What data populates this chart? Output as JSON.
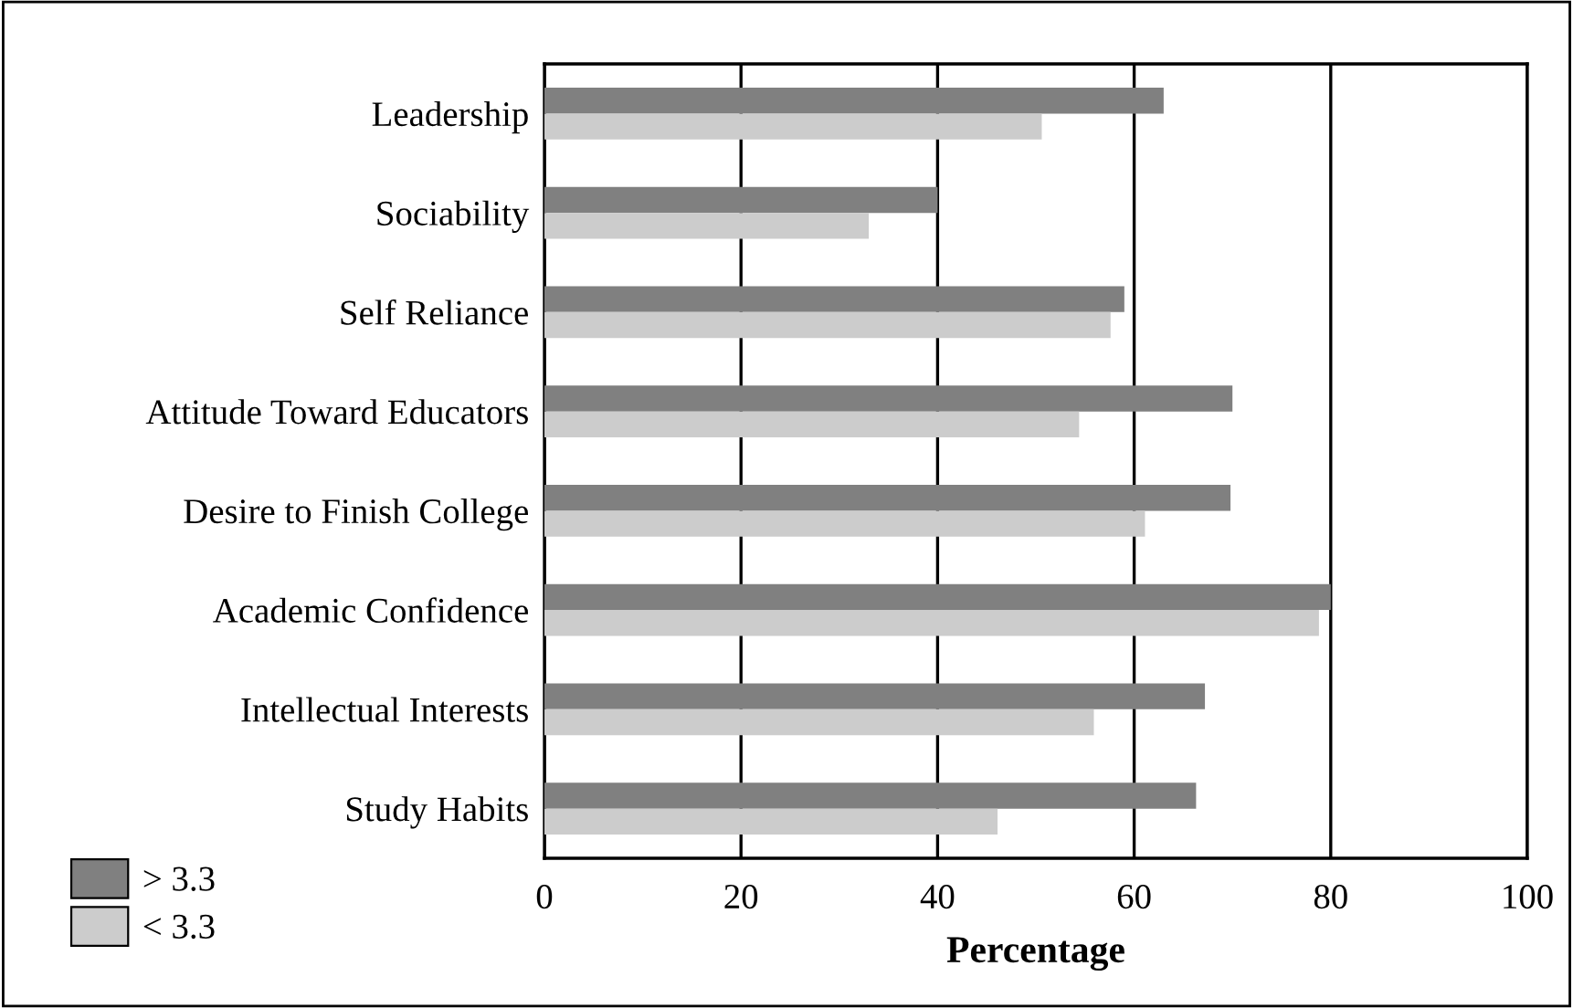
{
  "chart_data": {
    "type": "bar",
    "orientation": "horizontal",
    "xlabel": "Percentage",
    "categories": [
      "Leadership",
      "Sociability",
      "Self Reliance",
      "Attitude Toward Educators",
      "Desire to Finish College",
      "Academic Confidence",
      "Intellectual Interests",
      "Study Habits"
    ],
    "series": [
      {
        "name": "> 3.3",
        "color": "#808080",
        "values": [
          63,
          40,
          59,
          70,
          69.8,
          80,
          67.2,
          66.3
        ]
      },
      {
        "name": "< 3.3",
        "color": "#cccccc",
        "values": [
          50.6,
          33,
          57.6,
          54.4,
          61.1,
          78.8,
          55.9,
          46.1
        ]
      }
    ],
    "xlim": [
      0,
      100
    ],
    "xticks": [
      0,
      20,
      40,
      60,
      80,
      100
    ],
    "grid": "x",
    "legend": "bottom left"
  }
}
